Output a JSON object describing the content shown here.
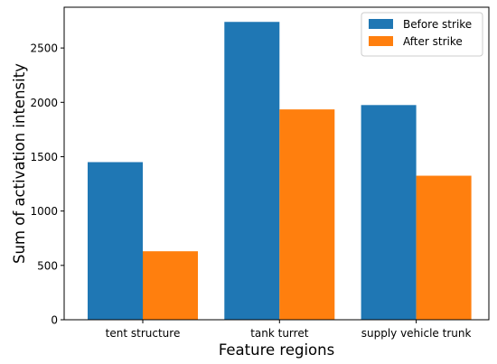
{
  "chart_data": {
    "type": "bar",
    "title": "",
    "xlabel": "Feature regions",
    "ylabel": "Sum of activation intensity",
    "categories": [
      "tent structure",
      "tank turret",
      "supply vehicle trunk"
    ],
    "series": [
      {
        "name": "Before strike",
        "color": "#1f77b4",
        "values": [
          1450,
          2740,
          1975
        ]
      },
      {
        "name": "After strike",
        "color": "#ff7f0e",
        "values": [
          630,
          1935,
          1325
        ]
      }
    ],
    "ylim": [
      0,
      2875
    ],
    "yticks": [
      0,
      500,
      1000,
      1500,
      2000,
      2500
    ],
    "grid": false,
    "legend_position": "top-right"
  }
}
